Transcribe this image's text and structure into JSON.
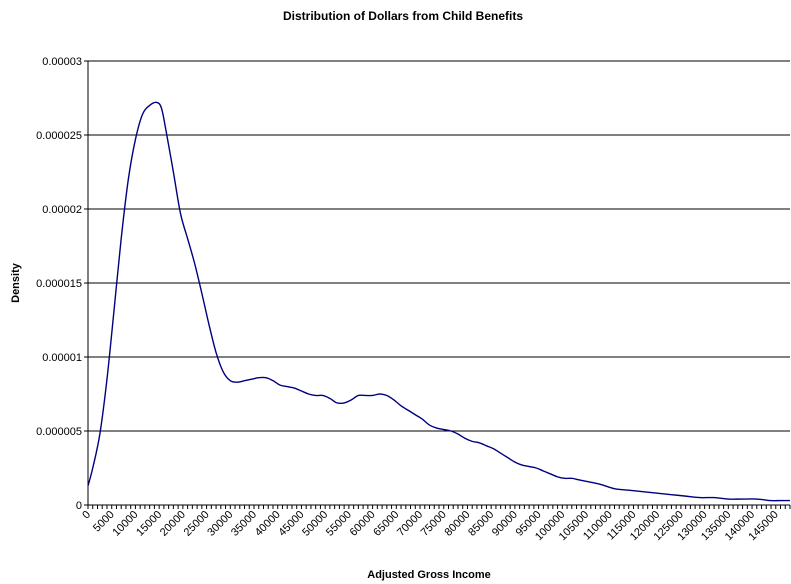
{
  "chart_data": {
    "type": "line",
    "title": "Distribution of Dollars from Child Benefits",
    "xlabel": "Adjusted Gross Income",
    "ylabel": "Density",
    "xlim": [
      0,
      148000
    ],
    "ylim": [
      0,
      3e-05
    ],
    "y_ticks": [
      "0",
      "0.000005",
      "0.00001",
      "0.000015",
      "0.00002",
      "0.000025",
      "0.00003"
    ],
    "y_tick_values": [
      0,
      5e-06,
      1e-05,
      1.5e-05,
      2e-05,
      2.5e-05,
      3e-05
    ],
    "x_ticks": [
      "0",
      "5000",
      "10000",
      "15000",
      "20000",
      "25000",
      "30000",
      "35000",
      "40000",
      "45000",
      "50000",
      "55000",
      "60000",
      "65000",
      "70000",
      "75000",
      "80000",
      "85000",
      "90000",
      "95000",
      "100000",
      "105000",
      "110000",
      "115000",
      "120000",
      "125000",
      "130000",
      "135000",
      "140000",
      "145000"
    ],
    "x_tick_values": [
      0,
      5000,
      10000,
      15000,
      20000,
      25000,
      30000,
      35000,
      40000,
      45000,
      50000,
      55000,
      60000,
      65000,
      70000,
      75000,
      80000,
      85000,
      90000,
      95000,
      100000,
      105000,
      110000,
      115000,
      120000,
      125000,
      130000,
      135000,
      140000,
      145000
    ],
    "grid": "horizontal",
    "line_color": "#000080",
    "series": [
      {
        "x": [
          0,
          1000,
          2500,
          4000,
          5500,
          7000,
          8500,
          10000,
          11500,
          13000,
          14500,
          15500,
          16500,
          18000,
          19500,
          21000,
          22500,
          24000,
          25500,
          27000,
          28500,
          30000,
          31500,
          33000,
          34500,
          36000,
          37500,
          39000,
          40500,
          42000,
          43500,
          45000,
          46500,
          48000,
          49500,
          51000,
          52500,
          54000,
          55500,
          57000,
          58500,
          60000,
          61500,
          63000,
          64500,
          66000,
          67500,
          69000,
          70500,
          72000,
          73500,
          75000,
          76500,
          78000,
          79500,
          81000,
          82500,
          84000,
          85500,
          87000,
          88500,
          90000,
          91500,
          93000,
          94500,
          96000,
          97500,
          99000,
          100500,
          102000,
          103500,
          105000,
          108000,
          111000,
          114000,
          117000,
          120000,
          123000,
          126000,
          129000,
          132000,
          135000,
          138000,
          141000,
          144000,
          146000,
          148000
        ],
        "y": [
          1.3e-06,
          2.5e-06,
          4.8e-06,
          8.5e-06,
          1.32e-05,
          1.8e-05,
          2.2e-05,
          2.47e-05,
          2.64e-05,
          2.7e-05,
          2.72e-05,
          2.68e-05,
          2.52e-05,
          2.25e-05,
          1.97e-05,
          1.8e-05,
          1.63e-05,
          1.43e-05,
          1.22e-05,
          1.03e-05,
          9e-06,
          8.4e-06,
          8.3e-06,
          8.4e-06,
          8.5e-06,
          8.6e-06,
          8.6e-06,
          8.4e-06,
          8.1e-06,
          8e-06,
          7.9e-06,
          7.7e-06,
          7.5e-06,
          7.4e-06,
          7.4e-06,
          7.2e-06,
          6.9e-06,
          6.9e-06,
          7.1e-06,
          7.4e-06,
          7.4e-06,
          7.4e-06,
          7.5e-06,
          7.4e-06,
          7.1e-06,
          6.7e-06,
          6.4e-06,
          6.1e-06,
          5.8e-06,
          5.4e-06,
          5.2e-06,
          5.1e-06,
          5e-06,
          4.8e-06,
          4.5e-06,
          4.3e-06,
          4.2e-06,
          4e-06,
          3.8e-06,
          3.5e-06,
          3.2e-06,
          2.9e-06,
          2.7e-06,
          2.6e-06,
          2.5e-06,
          2.3e-06,
          2.1e-06,
          1.9e-06,
          1.8e-06,
          1.8e-06,
          1.7e-06,
          1.6e-06,
          1.4e-06,
          1.1e-06,
          1e-06,
          9e-07,
          8e-07,
          7e-07,
          6e-07,
          5e-07,
          5e-07,
          4e-07,
          4e-07,
          4e-07,
          3e-07,
          3e-07,
          3e-07
        ]
      }
    ]
  }
}
